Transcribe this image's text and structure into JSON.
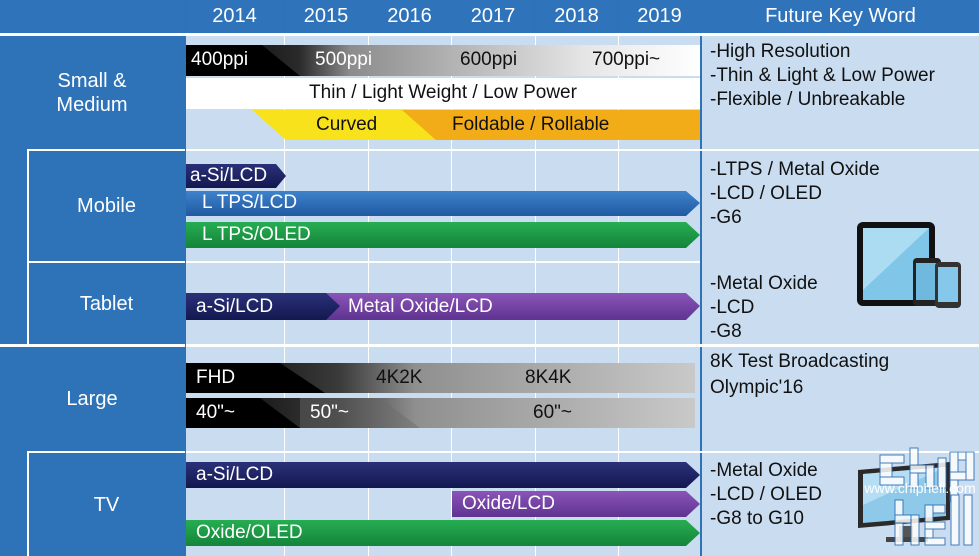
{
  "header": {
    "years": [
      "2014",
      "2015",
      "2016",
      "2017",
      "2018",
      "2019"
    ],
    "future_title": "Future Key Word"
  },
  "categories": {
    "small_medium": "Small &\nMedium",
    "mobile": "Mobile",
    "tablet": "Tablet",
    "large": "Large",
    "tv": "TV"
  },
  "small_medium": {
    "ppi": [
      "400ppi",
      "500ppi",
      "600ppi",
      "700ppi~"
    ],
    "thin": "Thin / Light Weight / Low Power",
    "curved": "Curved",
    "foldable": "Foldable / Rollable",
    "keywords": [
      "-High Resolution",
      "-Thin & Light & Low Power",
      "-Flexible / Unbreakable"
    ]
  },
  "mobile": {
    "asi": "a-Si/LCD",
    "ltps_lcd": "L TPS/LCD",
    "ltps_oled": "L TPS/OLED",
    "keywords": [
      "-LTPS / Metal Oxide",
      "-LCD / OLED",
      "-G6"
    ]
  },
  "tablet": {
    "asi": "a-Si/LCD",
    "metal_oxide": "Metal Oxide/LCD",
    "keywords": [
      "-Metal Oxide",
      "-LCD",
      "-G8"
    ]
  },
  "large": {
    "resolutions": [
      "FHD",
      "4K2K",
      "8K4K"
    ],
    "sizes": [
      "40\"~",
      "50\"~",
      "60\"~"
    ],
    "keywords": [
      "8K Test Broadcasting",
      "Olympic'16"
    ]
  },
  "tv": {
    "asi": "a-Si/LCD",
    "oxide_lcd": "Oxide/LCD",
    "oxide_oled": "Oxide/OLED",
    "keywords": [
      "-Metal Oxide",
      "-LCD / OLED",
      "-G8 to G10"
    ]
  },
  "watermark": {
    "logo": "chip hell",
    "url": "www.chiphell.com"
  },
  "colors": {
    "header_blue": "#2f74ba",
    "panel": "#c9dcf0",
    "navy": "#1f2463",
    "blue": "#2e6bb7",
    "green": "#1c9a45",
    "purple": "#7a45a7",
    "yellow": "#f7e21c",
    "orange": "#f2ac18"
  }
}
